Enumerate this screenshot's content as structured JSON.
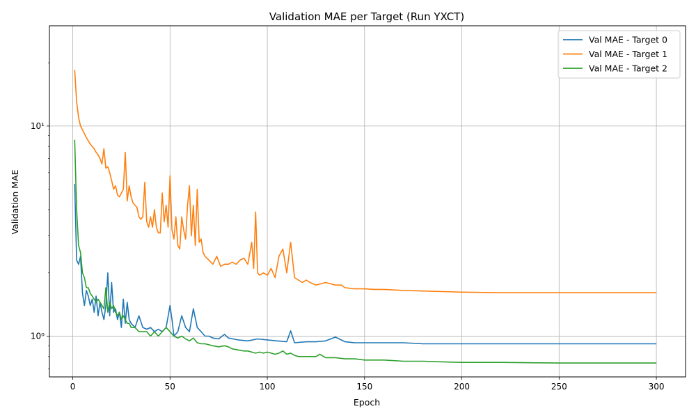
{
  "chart_data": {
    "type": "line",
    "title": "Validation MAE per Target (Run YXCT)",
    "xlabel": "Epoch",
    "ylabel": "Validation MAE",
    "xlim": [
      -12,
      315
    ],
    "ylim": [
      0.64,
      30
    ],
    "yscale": "log",
    "x_ticks": [
      0,
      50,
      100,
      150,
      200,
      250,
      300
    ],
    "y_ticks": [
      1,
      10
    ],
    "y_tick_labels": [
      "10⁰",
      "10¹"
    ],
    "grid": true,
    "legend_position": "upper right",
    "series": [
      {
        "name": "Val MAE - Target 0",
        "color": "#1f77b4",
        "x": [
          1,
          2,
          3,
          4,
          5,
          6,
          7,
          8,
          9,
          10,
          11,
          12,
          13,
          14,
          15,
          16,
          17,
          18,
          19,
          20,
          21,
          22,
          23,
          24,
          25,
          26,
          27,
          28,
          29,
          30,
          32,
          34,
          36,
          38,
          40,
          42,
          44,
          46,
          48,
          50,
          51,
          52,
          54,
          56,
          58,
          60,
          62,
          64,
          66,
          68,
          70,
          72,
          75,
          78,
          80,
          85,
          90,
          95,
          100,
          105,
          110,
          112,
          114,
          120,
          125,
          130,
          135,
          140,
          145,
          150,
          160,
          170,
          180,
          190,
          200,
          220,
          250,
          280,
          300
        ],
        "y": [
          5.3,
          2.3,
          2.2,
          2.4,
          1.6,
          1.4,
          1.65,
          1.55,
          1.4,
          1.5,
          1.3,
          1.55,
          1.25,
          1.45,
          1.3,
          1.2,
          1.4,
          2.0,
          1.25,
          1.8,
          1.3,
          1.35,
          1.2,
          1.3,
          1.1,
          1.5,
          1.15,
          1.45,
          1.2,
          1.15,
          1.1,
          1.25,
          1.1,
          1.08,
          1.1,
          1.05,
          1.08,
          1.05,
          1.1,
          1.4,
          1.2,
          1.0,
          1.05,
          1.25,
          1.1,
          1.05,
          1.35,
          1.1,
          1.05,
          1.0,
          1.0,
          0.98,
          0.97,
          1.02,
          0.98,
          0.96,
          0.95,
          0.97,
          0.96,
          0.95,
          0.94,
          1.06,
          0.93,
          0.94,
          0.94,
          0.95,
          0.99,
          0.94,
          0.93,
          0.93,
          0.93,
          0.93,
          0.92,
          0.92,
          0.92,
          0.92,
          0.92,
          0.92,
          0.92
        ]
      },
      {
        "name": "Val MAE - Target 1",
        "color": "#ff7f0e",
        "x": [
          1,
          2,
          3,
          4,
          5,
          6,
          7,
          8,
          9,
          10,
          11,
          12,
          13,
          14,
          15,
          16,
          17,
          18,
          19,
          20,
          21,
          22,
          23,
          24,
          25,
          26,
          27,
          28,
          29,
          30,
          31,
          32,
          33,
          34,
          35,
          36,
          37,
          38,
          39,
          40,
          41,
          42,
          43,
          44,
          45,
          46,
          47,
          48,
          49,
          50,
          51,
          52,
          53,
          54,
          55,
          56,
          57,
          58,
          59,
          60,
          61,
          62,
          63,
          64,
          65,
          66,
          67,
          68,
          70,
          72,
          74,
          76,
          78,
          80,
          82,
          84,
          86,
          88,
          90,
          92,
          93,
          94,
          95,
          96,
          98,
          100,
          102,
          104,
          106,
          108,
          110,
          112,
          114,
          116,
          118,
          120,
          122,
          125,
          130,
          135,
          138,
          140,
          145,
          150,
          155,
          160,
          170,
          180,
          190,
          200,
          220,
          250,
          280,
          300
        ],
        "y": [
          18.5,
          13,
          11,
          10,
          9.6,
          9.2,
          8.8,
          8.5,
          8.2,
          8,
          7.8,
          7.5,
          7.3,
          7,
          6.6,
          7.8,
          6.3,
          6.4,
          6.0,
          5.5,
          5.0,
          5.2,
          4.7,
          4.6,
          4.8,
          5.0,
          7.5,
          4.4,
          5.2,
          4.6,
          4.3,
          4.2,
          4.1,
          3.7,
          3.6,
          3.7,
          5.4,
          3.5,
          3.3,
          3.7,
          3.3,
          4.0,
          3.3,
          3.1,
          3.1,
          4.8,
          3.5,
          4.2,
          3.3,
          5.8,
          3.2,
          2.9,
          3.7,
          2.7,
          2.6,
          3.7,
          3.2,
          2.9,
          4.2,
          5.2,
          3.0,
          4.2,
          2.7,
          5.0,
          2.8,
          2.9,
          2.5,
          2.4,
          2.3,
          2.2,
          2.4,
          2.15,
          2.2,
          2.2,
          2.25,
          2.2,
          2.3,
          2.35,
          2.2,
          2.8,
          2.1,
          3.9,
          2.0,
          1.95,
          2.0,
          1.95,
          2.1,
          1.9,
          2.4,
          2.6,
          2.0,
          2.8,
          1.9,
          1.85,
          1.8,
          1.85,
          1.8,
          1.75,
          1.8,
          1.75,
          1.75,
          1.7,
          1.68,
          1.68,
          1.67,
          1.67,
          1.65,
          1.64,
          1.63,
          1.62,
          1.61,
          1.61,
          1.61,
          1.61
        ]
      },
      {
        "name": "Val MAE - Target 2",
        "color": "#2ca02c",
        "x": [
          1,
          2,
          3,
          4,
          5,
          6,
          7,
          8,
          9,
          10,
          11,
          12,
          13,
          14,
          15,
          16,
          17,
          18,
          19,
          20,
          21,
          22,
          23,
          24,
          25,
          26,
          27,
          28,
          29,
          30,
          32,
          34,
          36,
          38,
          40,
          42,
          44,
          46,
          48,
          50,
          52,
          54,
          56,
          58,
          60,
          62,
          64,
          66,
          68,
          70,
          72,
          75,
          78,
          80,
          82,
          85,
          88,
          90,
          92,
          94,
          96,
          98,
          100,
          102,
          104,
          106,
          108,
          110,
          112,
          114,
          116,
          118,
          120,
          125,
          127,
          130,
          135,
          140,
          145,
          150,
          160,
          170,
          180,
          190,
          200,
          220,
          250,
          280,
          300
        ],
        "y": [
          8.6,
          4,
          2.7,
          2.5,
          2.0,
          1.9,
          1.7,
          1.7,
          1.6,
          1.55,
          1.5,
          1.45,
          1.5,
          1.45,
          1.4,
          1.35,
          1.7,
          1.3,
          1.45,
          1.35,
          1.4,
          1.3,
          1.25,
          1.3,
          1.2,
          1.25,
          1.2,
          1.15,
          1.15,
          1.1,
          1.1,
          1.05,
          1.05,
          1.05,
          1.0,
          1.05,
          1.0,
          1.05,
          1.1,
          1.05,
          1.0,
          0.98,
          1.0,
          0.97,
          0.95,
          0.98,
          0.93,
          0.92,
          0.92,
          0.91,
          0.9,
          0.89,
          0.9,
          0.89,
          0.87,
          0.86,
          0.85,
          0.85,
          0.84,
          0.83,
          0.84,
          0.83,
          0.84,
          0.83,
          0.82,
          0.83,
          0.85,
          0.82,
          0.83,
          0.81,
          0.8,
          0.8,
          0.8,
          0.8,
          0.82,
          0.79,
          0.79,
          0.78,
          0.78,
          0.77,
          0.77,
          0.76,
          0.76,
          0.755,
          0.75,
          0.75,
          0.745,
          0.745,
          0.745
        ]
      }
    ]
  }
}
